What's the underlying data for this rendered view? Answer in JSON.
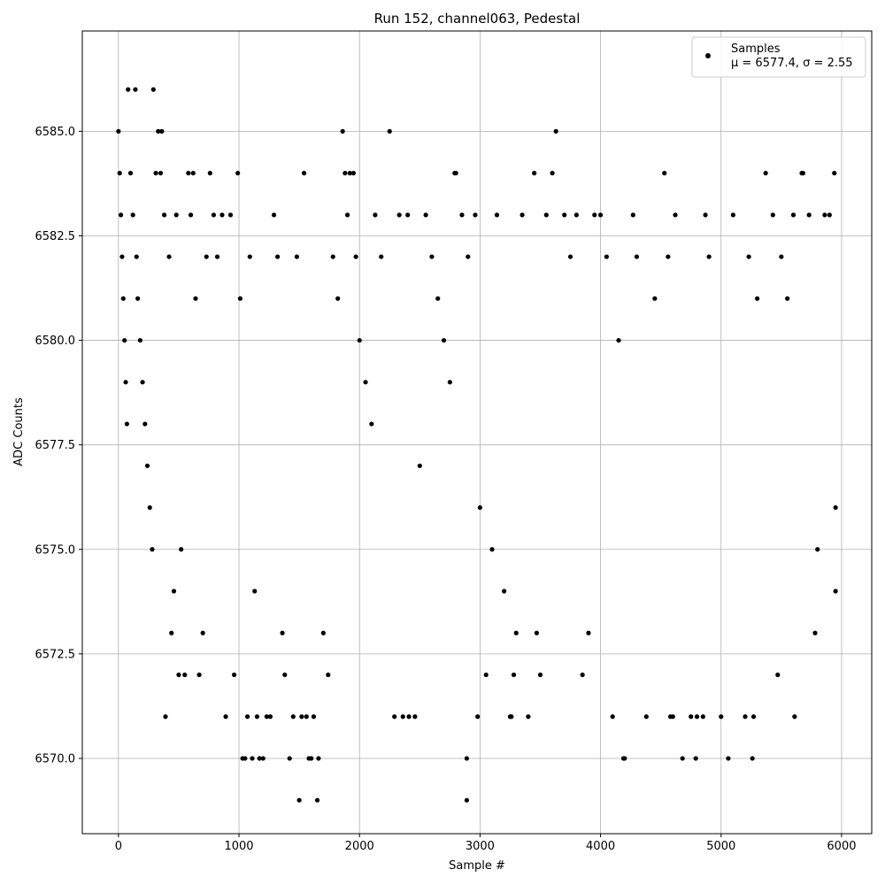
{
  "chart_data": {
    "type": "scatter",
    "title": "Run 152, channel063, Pedestal",
    "xlabel": "Sample #",
    "ylabel": "ADC Counts",
    "xlim": [
      -300,
      6250
    ],
    "ylim": [
      6568.2,
      6587.4
    ],
    "x_ticks": [
      0,
      1000,
      2000,
      3000,
      4000,
      5000,
      6000
    ],
    "y_ticks": [
      6570.0,
      6572.5,
      6575.0,
      6577.5,
      6580.0,
      6582.5,
      6585.0
    ],
    "grid": true,
    "legend": {
      "placement": "top-right",
      "series_label": "Samples",
      "stats_label": "μ = 6577.4, σ = 2.55"
    },
    "colors": {
      "marker": "#000000",
      "grid": "#b0b0b0"
    },
    "series": [
      {
        "name": "Samples",
        "points": [
          [
            0,
            6585
          ],
          [
            10,
            6584
          ],
          [
            20,
            6583
          ],
          [
            30,
            6582
          ],
          [
            40,
            6581
          ],
          [
            50,
            6580
          ],
          [
            60,
            6579
          ],
          [
            70,
            6578
          ],
          [
            80,
            6586
          ],
          [
            100,
            6584
          ],
          [
            120,
            6583
          ],
          [
            140,
            6586
          ],
          [
            150,
            6582
          ],
          [
            160,
            6581
          ],
          [
            180,
            6580
          ],
          [
            200,
            6579
          ],
          [
            220,
            6578
          ],
          [
            240,
            6577
          ],
          [
            260,
            6576
          ],
          [
            280,
            6575
          ],
          [
            290,
            6586
          ],
          [
            310,
            6584
          ],
          [
            330,
            6585
          ],
          [
            350,
            6584
          ],
          [
            360,
            6585
          ],
          [
            380,
            6583
          ],
          [
            390,
            6571
          ],
          [
            420,
            6582
          ],
          [
            440,
            6573
          ],
          [
            460,
            6574
          ],
          [
            480,
            6583
          ],
          [
            500,
            6572
          ],
          [
            520,
            6575
          ],
          [
            550,
            6572
          ],
          [
            580,
            6584
          ],
          [
            600,
            6583
          ],
          [
            620,
            6584
          ],
          [
            640,
            6581
          ],
          [
            670,
            6572
          ],
          [
            700,
            6573
          ],
          [
            730,
            6582
          ],
          [
            760,
            6584
          ],
          [
            790,
            6583
          ],
          [
            820,
            6582
          ],
          [
            860,
            6583
          ],
          [
            890,
            6571
          ],
          [
            930,
            6583
          ],
          [
            960,
            6572
          ],
          [
            990,
            6584
          ],
          [
            1010,
            6581
          ],
          [
            1030,
            6570
          ],
          [
            1050,
            6570
          ],
          [
            1070,
            6571
          ],
          [
            1090,
            6582
          ],
          [
            1110,
            6570
          ],
          [
            1130,
            6574
          ],
          [
            1150,
            6571
          ],
          [
            1170,
            6570
          ],
          [
            1200,
            6570
          ],
          [
            1230,
            6571
          ],
          [
            1260,
            6571
          ],
          [
            1290,
            6583
          ],
          [
            1320,
            6582
          ],
          [
            1360,
            6573
          ],
          [
            1380,
            6572
          ],
          [
            1420,
            6570
          ],
          [
            1450,
            6571
          ],
          [
            1480,
            6582
          ],
          [
            1500,
            6569
          ],
          [
            1520,
            6571
          ],
          [
            1540,
            6584
          ],
          [
            1560,
            6571
          ],
          [
            1580,
            6570
          ],
          [
            1600,
            6570
          ],
          [
            1620,
            6571
          ],
          [
            1650,
            6569
          ],
          [
            1660,
            6570
          ],
          [
            1700,
            6573
          ],
          [
            1740,
            6572
          ],
          [
            1780,
            6582
          ],
          [
            1820,
            6581
          ],
          [
            1860,
            6585
          ],
          [
            1880,
            6584
          ],
          [
            1900,
            6583
          ],
          [
            1920,
            6584
          ],
          [
            1950,
            6584
          ],
          [
            1970,
            6582
          ],
          [
            2000,
            6580
          ],
          [
            2050,
            6579
          ],
          [
            2100,
            6578
          ],
          [
            2130,
            6583
          ],
          [
            2180,
            6582
          ],
          [
            2250,
            6585
          ],
          [
            2290,
            6571
          ],
          [
            2330,
            6583
          ],
          [
            2360,
            6571
          ],
          [
            2400,
            6583
          ],
          [
            2410,
            6571
          ],
          [
            2460,
            6571
          ],
          [
            2500,
            6577
          ],
          [
            2550,
            6583
          ],
          [
            2600,
            6582
          ],
          [
            2650,
            6581
          ],
          [
            2700,
            6580
          ],
          [
            2750,
            6579
          ],
          [
            2790,
            6584
          ],
          [
            2800,
            6584
          ],
          [
            2850,
            6583
          ],
          [
            2890,
            6570
          ],
          [
            2890,
            6569
          ],
          [
            2900,
            6582
          ],
          [
            2960,
            6583
          ],
          [
            2980,
            6571
          ],
          [
            3000,
            6576
          ],
          [
            3050,
            6572
          ],
          [
            3100,
            6575
          ],
          [
            3140,
            6583
          ],
          [
            3200,
            6574
          ],
          [
            3250,
            6571
          ],
          [
            3260,
            6571
          ],
          [
            3280,
            6572
          ],
          [
            3300,
            6573
          ],
          [
            3350,
            6583
          ],
          [
            3400,
            6571
          ],
          [
            3450,
            6584
          ],
          [
            3470,
            6573
          ],
          [
            3500,
            6572
          ],
          [
            3550,
            6583
          ],
          [
            3600,
            6584
          ],
          [
            3630,
            6585
          ],
          [
            3700,
            6583
          ],
          [
            3750,
            6582
          ],
          [
            3800,
            6583
          ],
          [
            3850,
            6572
          ],
          [
            3900,
            6573
          ],
          [
            3950,
            6583
          ],
          [
            4000,
            6583
          ],
          [
            4050,
            6582
          ],
          [
            4100,
            6571
          ],
          [
            4150,
            6580
          ],
          [
            4190,
            6570
          ],
          [
            4200,
            6570
          ],
          [
            4270,
            6583
          ],
          [
            4300,
            6582
          ],
          [
            4380,
            6571
          ],
          [
            4450,
            6581
          ],
          [
            4530,
            6584
          ],
          [
            4560,
            6582
          ],
          [
            4580,
            6571
          ],
          [
            4600,
            6571
          ],
          [
            4620,
            6583
          ],
          [
            4680,
            6570
          ],
          [
            4750,
            6571
          ],
          [
            4790,
            6570
          ],
          [
            4800,
            6571
          ],
          [
            4850,
            6571
          ],
          [
            4870,
            6583
          ],
          [
            4900,
            6582
          ],
          [
            5000,
            6571
          ],
          [
            5060,
            6570
          ],
          [
            5100,
            6583
          ],
          [
            5200,
            6571
          ],
          [
            5230,
            6582
          ],
          [
            5260,
            6570
          ],
          [
            5270,
            6571
          ],
          [
            5300,
            6581
          ],
          [
            5370,
            6584
          ],
          [
            5430,
            6583
          ],
          [
            5470,
            6572
          ],
          [
            5500,
            6582
          ],
          [
            5550,
            6581
          ],
          [
            5600,
            6583
          ],
          [
            5610,
            6571
          ],
          [
            5670,
            6584
          ],
          [
            5680,
            6584
          ],
          [
            5730,
            6583
          ],
          [
            5780,
            6573
          ],
          [
            5800,
            6575
          ],
          [
            5860,
            6583
          ],
          [
            5900,
            6583
          ],
          [
            5940,
            6584
          ],
          [
            5950,
            6574
          ],
          [
            5950,
            6576
          ]
        ]
      }
    ]
  }
}
